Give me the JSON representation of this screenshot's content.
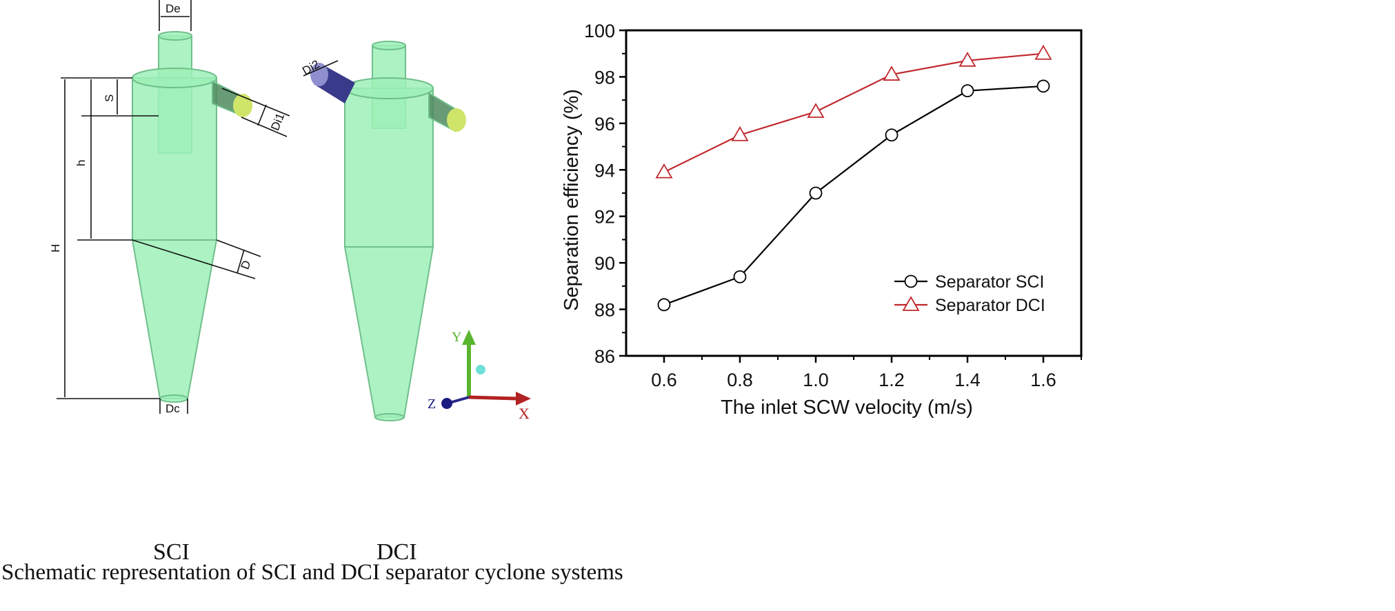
{
  "schematic": {
    "labels": {
      "De": "De",
      "S": "S",
      "h": "h",
      "H": "H",
      "Di1": "Di1",
      "D": "D",
      "Dc": "Dc",
      "Di2": "Di2"
    },
    "sci_label": "SCI",
    "dci_label": "DCI",
    "axes": {
      "x": "X",
      "y": "Y",
      "z": "Z"
    },
    "caption": "Schematic representation of SCI and DCI separator cyclone systems",
    "colors": {
      "body": "#9ef0b8",
      "inlet1": "#cfe56a",
      "inlet2": "#6f6fb8"
    }
  },
  "chart_data": {
    "type": "line",
    "xlabel": "The inlet SCW velocity (m/s)",
    "ylabel": "Separation efficiency (%)",
    "xlim": [
      0.5,
      1.7
    ],
    "ylim": [
      86,
      100
    ],
    "x": [
      0.6,
      0.8,
      1.0,
      1.2,
      1.4,
      1.6
    ],
    "xticks": [
      "0.6",
      "0.8",
      "1.0",
      "1.2",
      "1.4",
      "1.6"
    ],
    "yticks": [
      "86",
      "88",
      "90",
      "92",
      "94",
      "96",
      "98",
      "100"
    ],
    "grid": false,
    "legend_position": "lower-right",
    "series": [
      {
        "name": "Separator SCI",
        "marker": "circle",
        "color": "#000000",
        "values": [
          88.2,
          89.4,
          93.0,
          95.5,
          97.4,
          97.6
        ]
      },
      {
        "name": "Separator DCI",
        "marker": "triangle",
        "color": "#c0272d",
        "values": [
          93.9,
          95.5,
          96.5,
          98.1,
          98.7,
          99.0
        ]
      }
    ]
  }
}
